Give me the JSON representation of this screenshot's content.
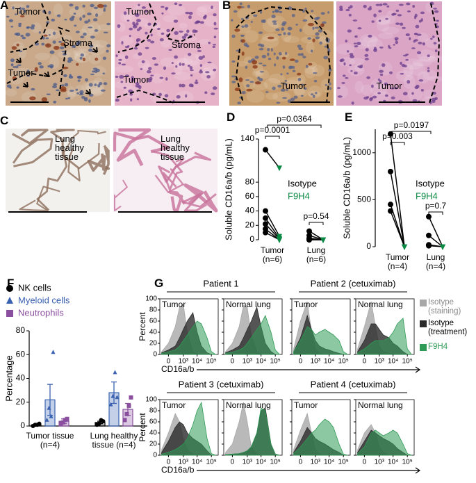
{
  "panels": {
    "A": {
      "label": "A",
      "left": [
        "Tumor",
        "Stroma",
        "Tumor"
      ],
      "right": [
        "Tumor",
        "Stroma",
        "Tumor"
      ]
    },
    "B": {
      "label": "B",
      "left": [
        "Tumor"
      ],
      "right": [
        "Tumor"
      ]
    },
    "C": {
      "label": "C",
      "left": [
        "Lung healthy tissue"
      ],
      "right": [
        "Lung healthy tissue"
      ]
    }
  },
  "chart_data": [
    {
      "type": "paired-dot",
      "label": "D",
      "ylabel": "Soluble CD16a/b (pg/mL)",
      "categories": [
        "Tumor (n=6)",
        "Lung (n=6)"
      ],
      "series": [
        {
          "name": "Isotype",
          "color": "#000000",
          "marker": "circle",
          "values": [
            [
              125,
              40,
              30,
              22,
              15,
              10
            ],
            [
              12,
              6,
              2,
              1,
              0,
              0
            ]
          ]
        },
        {
          "name": "F9H4",
          "color": "#0a8a45",
          "marker": "triangle-down",
          "values": [
            [
              100,
              5,
              2,
              1,
              0,
              0
            ],
            [
              0,
              0,
              0,
              0,
              0,
              0
            ]
          ]
        }
      ],
      "ylim": [
        0,
        140
      ],
      "yticks": [
        0,
        20,
        40,
        60,
        80,
        140
      ],
      "annotations": [
        "p=0.0364",
        "p=0.0001",
        "p=0.54"
      ]
    },
    {
      "type": "paired-dot",
      "label": "E",
      "ylabel": "Soluble CD16a/b (pg/mL)",
      "categories": [
        "Tumor (n=4)",
        "Lung (n=4)"
      ],
      "series": [
        {
          "name": "Isotype",
          "color": "#000000",
          "marker": "circle",
          "values": [
            [
              1200,
              800,
              450,
              380
            ],
            [
              320,
              120,
              20,
              10
            ]
          ]
        },
        {
          "name": "F9H4",
          "color": "#0a8a45",
          "marker": "triangle-down",
          "values": [
            [
              0,
              0,
              0,
              0
            ],
            [
              0,
              0,
              0,
              0
            ]
          ]
        }
      ],
      "ylim": [
        0,
        1250
      ],
      "yticks": [
        0,
        500,
        1000
      ],
      "annotations": [
        "p=0.0197",
        "p=0.003",
        "p=0.7"
      ]
    },
    {
      "type": "bar",
      "label": "F",
      "ylabel": "Percentage",
      "categories": [
        "Tumor tissue (n=4)",
        "Lung healthy tissue (n=4)"
      ],
      "series": [
        {
          "name": "NK cells",
          "color": "#000000",
          "marker": "circle",
          "values": [
            1,
            3
          ],
          "errors": [
            0.5,
            1
          ],
          "points": [
            [
              0,
              1,
              1,
              2
            ],
            [
              1,
              2,
              5,
              4
            ]
          ]
        },
        {
          "name": "Myeloid cells",
          "color": "#3a62b0",
          "marker": "triangle",
          "values": [
            22,
            28
          ],
          "errors": [
            13,
            9
          ],
          "points": [
            [
              5,
              15,
              8,
              62
            ],
            [
              18,
              25,
              45,
              24
            ]
          ]
        },
        {
          "name": "Neutrophils",
          "color": "#8b4fa0",
          "marker": "square",
          "values": [
            4,
            14
          ],
          "errors": [
            2,
            5
          ],
          "points": [
            [
              2,
              3,
              5,
              6
            ],
            [
              5,
              10,
              17,
              24
            ]
          ]
        }
      ],
      "ylim": [
        0,
        80
      ],
      "yticks": [
        0,
        20,
        40,
        60,
        80
      ]
    },
    {
      "type": "flow-histogram",
      "label": "G",
      "ylabel": "Percent",
      "xlabel": "CD16a/b",
      "xscale": "symlog",
      "xlim": [
        -300,
        300000
      ],
      "xticks": [
        {
          "value": 0,
          "label": "0"
        },
        {
          "value": 1000,
          "label": "10³"
        },
        {
          "value": 10000,
          "label": "10⁴"
        },
        {
          "value": 100000,
          "label": "10⁵"
        }
      ],
      "ylim": [
        0,
        100
      ],
      "yticks": [
        0,
        20,
        40,
        60,
        80,
        100
      ],
      "x": [
        -200,
        0,
        200,
        500,
        1000,
        2000,
        5000,
        10000,
        20000,
        50000,
        100000,
        200000
      ],
      "series": [
        {
          "name": "Isotype (staining)",
          "color": "#a8a8a8"
        },
        {
          "name": "Isotype (treatment)",
          "color": "#2b2b2b"
        },
        {
          "name": "F9H4",
          "color": "#2e9a55"
        }
      ],
      "groups": [
        {
          "title": "Patient 1",
          "panels": [
            {
              "title": "Tumor",
              "values": [
                [
                  5,
                  20,
                  50,
                  85,
                  90,
                  40,
                  5,
                  0,
                  0,
                  0,
                  0,
                  0
                ],
                [
                  3,
                  8,
                  15,
                  30,
                  45,
                  60,
                  75,
                  40,
                  15,
                  3,
                  0,
                  0
                ],
                [
                  2,
                  5,
                  8,
                  15,
                  25,
                  35,
                  50,
                  60,
                  55,
                  30,
                  5,
                  0
                ]
              ]
            },
            {
              "title": "Normal lung",
              "values": [
                [
                  5,
                  20,
                  50,
                  88,
                  85,
                  35,
                  5,
                  0,
                  0,
                  0,
                  0,
                  0
                ],
                [
                  3,
                  8,
                  15,
                  30,
                  45,
                  60,
                  85,
                  50,
                  20,
                  5,
                  0,
                  0
                ],
                [
                  2,
                  4,
                  8,
                  12,
                  20,
                  30,
                  45,
                  55,
                  70,
                  40,
                  8,
                  0
                ]
              ]
            }
          ]
        },
        {
          "title": "Patient 2 (cetuximab)",
          "panels": [
            {
              "title": "Tumor",
              "values": [
                [
                  10,
                  60,
                  95,
                  40,
                  10,
                  2,
                  0,
                  0,
                  0,
                  0,
                  0,
                  0
                ],
                [
                  5,
                  30,
                  70,
                  45,
                  25,
                  15,
                  10,
                  8,
                  5,
                  2,
                  0,
                  0
                ],
                [
                  5,
                  25,
                  50,
                  45,
                  35,
                  40,
                  45,
                  40,
                  35,
                  25,
                  5,
                  0
                ]
              ]
            },
            {
              "title": "Normal lung",
              "values": [
                [
                  10,
                  50,
                  95,
                  50,
                  15,
                  5,
                  2,
                  0,
                  0,
                  0,
                  0,
                  0
                ],
                [
                  5,
                  25,
                  55,
                  55,
                  45,
                  35,
                  30,
                  20,
                  15,
                  5,
                  0,
                  0
                ],
                [
                  3,
                  10,
                  20,
                  25,
                  25,
                  25,
                  30,
                  40,
                  55,
                  65,
                  10,
                  0
                ]
              ]
            }
          ]
        },
        {
          "title": "Patient 3 (cetuximab)",
          "panels": [
            {
              "title": "Tumor",
              "values": [
                [
                  10,
                  40,
                  75,
                  60,
                  30,
                  10,
                  2,
                  0,
                  0,
                  0,
                  0,
                  0
                ],
                [
                  5,
                  25,
                  50,
                  60,
                  55,
                  40,
                  30,
                  25,
                  20,
                  8,
                  0,
                  0
                ],
                [
                  2,
                  5,
                  10,
                  15,
                  20,
                  30,
                  55,
                  80,
                  95,
                  30,
                  3,
                  0
                ]
              ]
            },
            {
              "title": "Normal lung",
              "values": [
                [
                  5,
                  20,
                  60,
                  95,
                  60,
                  15,
                  2,
                  0,
                  0,
                  0,
                  0,
                  0
                ],
                [
                  1,
                  2,
                  3,
                  5,
                  8,
                  15,
                  40,
                  80,
                  85,
                  20,
                  2,
                  0
                ],
                [
                  1,
                  2,
                  3,
                  5,
                  8,
                  15,
                  40,
                  85,
                  80,
                  20,
                  2,
                  0
                ]
              ]
            }
          ]
        },
        {
          "title": "Patient 4 (cetuximab)",
          "panels": [
            {
              "title": "Tumor",
              "values": [
                [
                  10,
                  45,
                  75,
                  40,
                  10,
                  2,
                  0,
                  0,
                  0,
                  0,
                  0,
                  0
                ],
                [
                  5,
                  25,
                  50,
                  40,
                  30,
                  25,
                  20,
                  15,
                  10,
                  5,
                  0,
                  0
                ],
                [
                  3,
                  15,
                  30,
                  40,
                  45,
                  55,
                  65,
                  60,
                  50,
                  20,
                  2,
                  0
                ]
              ]
            },
            {
              "title": "Normal lung",
              "values": [
                [
                  10,
                  40,
                  55,
                  40,
                  15,
                  5,
                  0,
                  0,
                  0,
                  0,
                  0,
                  0
                ],
                [
                  5,
                  25,
                  45,
                  40,
                  35,
                  30,
                  25,
                  20,
                  12,
                  5,
                  0,
                  0
                ],
                [
                  3,
                  15,
                  40,
                  45,
                  40,
                  35,
                  40,
                  45,
                  40,
                  20,
                  3,
                  0
                ]
              ]
            }
          ]
        }
      ]
    }
  ]
}
